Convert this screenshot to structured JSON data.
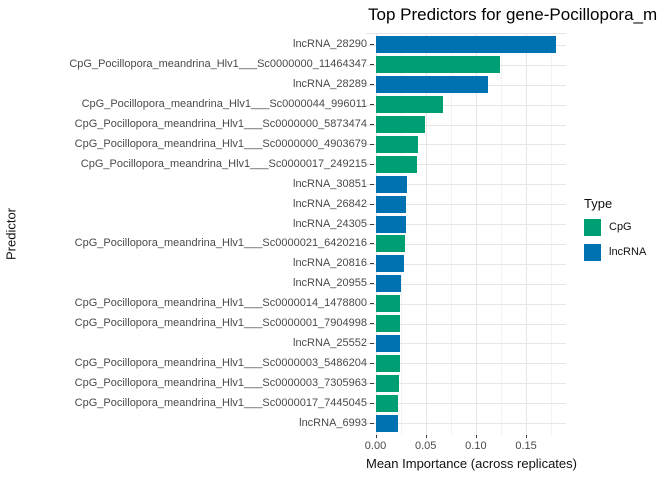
{
  "title": "Top Predictors for gene-Pocillopora_m",
  "axes": {
    "x_title": "Mean Importance (across replicates)",
    "y_title": "Predictor",
    "x_tick_labels": [
      "0.00",
      "0.05",
      "0.10",
      "0.15"
    ]
  },
  "legend": {
    "title": "Type",
    "items": [
      {
        "label": "CpG",
        "color": "#009E73"
      },
      {
        "label": "lncRNA",
        "color": "#0072B2"
      }
    ]
  },
  "colors": {
    "CpG": "#009E73",
    "lncRNA": "#0072B2",
    "grid_major": "#e6e6e6",
    "grid_minor": "#f2f2f2"
  },
  "chart_data": {
    "type": "bar",
    "orientation": "horizontal",
    "title": "Top Predictors for gene-Pocillopora_m",
    "xlabel": "Mean Importance (across replicates)",
    "ylabel": "Predictor",
    "xlim": [
      0,
      0.189
    ],
    "x_major_ticks": [
      0.0,
      0.05,
      0.1,
      0.15
    ],
    "x_minor_ticks": [
      0.025,
      0.075,
      0.125,
      0.175
    ],
    "grid": true,
    "legend_position": "right",
    "categories": [
      "lncRNA_28290",
      "CpG_Pocillopora_meandrina_Hlv1___Sc0000000_11464347",
      "lncRNA_28289",
      "CpG_Pocillopora_meandrina_Hlv1___Sc0000044_996011",
      "CpG_Pocillopora_meandrina_Hlv1___Sc0000000_5873474",
      "CpG_Pocillopora_meandrina_Hlv1___Sc0000000_4903679",
      "CpG_Pocillopora_meandrina_Hlv1___Sc0000017_249215",
      "lncRNA_30851",
      "lncRNA_26842",
      "lncRNA_24305",
      "CpG_Pocillopora_meandrina_Hlv1___Sc0000021_6420216",
      "lncRNA_20816",
      "lncRNA_20955",
      "CpG_Pocillopora_meandrina_Hlv1___Sc0000014_1478800",
      "CpG_Pocillopora_meandrina_Hlv1___Sc0000001_7904998",
      "lncRNA_25552",
      "CpG_Pocillopora_meandrina_Hlv1___Sc0000003_5486204",
      "CpG_Pocillopora_meandrina_Hlv1___Sc0000003_7305963",
      "CpG_Pocillopora_meandrina_Hlv1___Sc0000017_7445045",
      "lncRNA_6993"
    ],
    "types": [
      "lncRNA",
      "CpG",
      "lncRNA",
      "CpG",
      "CpG",
      "CpG",
      "CpG",
      "lncRNA",
      "lncRNA",
      "lncRNA",
      "CpG",
      "lncRNA",
      "lncRNA",
      "CpG",
      "CpG",
      "lncRNA",
      "CpG",
      "CpG",
      "CpG",
      "lncRNA"
    ],
    "values": [
      0.18,
      0.124,
      0.112,
      0.067,
      0.049,
      0.042,
      0.041,
      0.031,
      0.03,
      0.03,
      0.029,
      0.028,
      0.025,
      0.024,
      0.024,
      0.024,
      0.024,
      0.023,
      0.022,
      0.022
    ]
  }
}
